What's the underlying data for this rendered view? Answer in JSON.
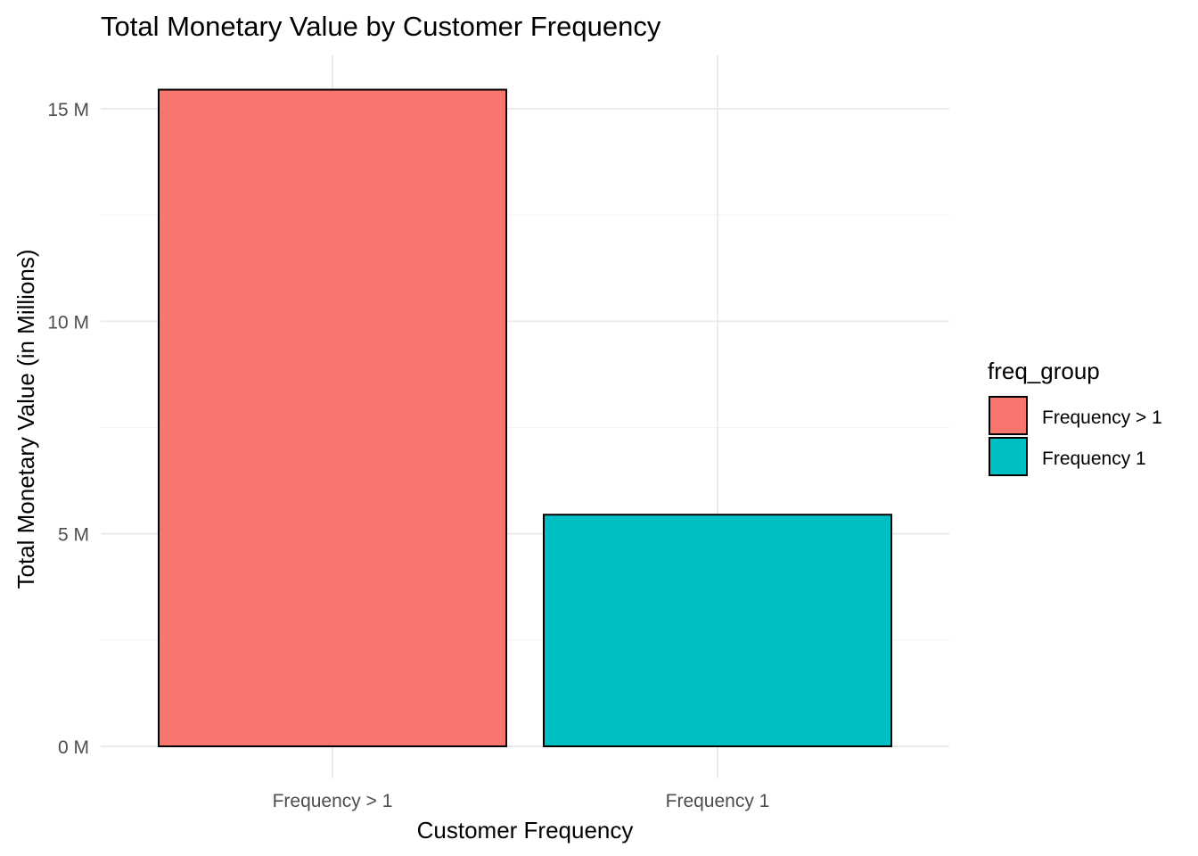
{
  "chart_data": {
    "type": "bar",
    "title": "Total Monetary Value by Customer Frequency",
    "xlabel": "Customer Frequency",
    "ylabel": "Total Monetary Value (in Millions)",
    "categories": [
      "Frequency > 1",
      "Frequency 1"
    ],
    "values": [
      15.45,
      5.45
    ],
    "colors": [
      "#F8766D",
      "#00BFC4"
    ],
    "ylim": [
      0,
      16
    ],
    "y_ticks": [
      0,
      5,
      10,
      15
    ],
    "y_tick_labels": [
      "0 M",
      "5 M",
      "10 M",
      "15 M"
    ],
    "y_minor_ticks": [
      2.5,
      7.5,
      12.5
    ],
    "grid": true,
    "legend": {
      "title": "freq_group",
      "position": "right",
      "entries": [
        "Frequency > 1",
        "Frequency 1"
      ]
    }
  }
}
